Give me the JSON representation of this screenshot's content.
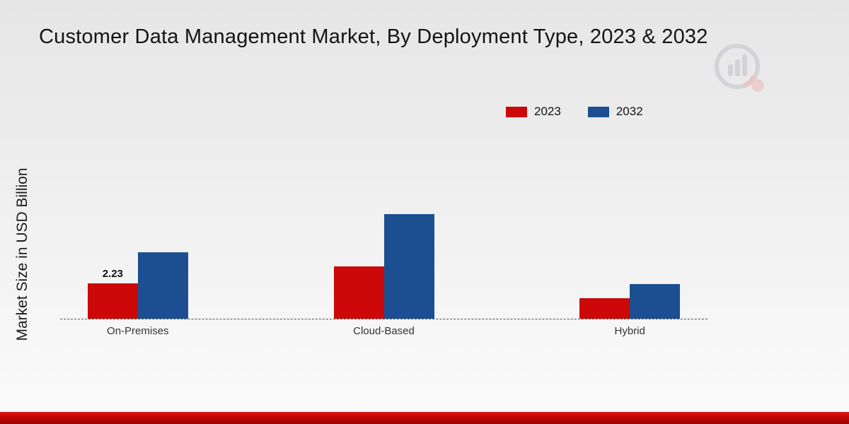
{
  "title": "Customer Data Management Market, By Deployment Type, 2023 & 2032",
  "ylabel": "Market Size in USD Billion",
  "colors": {
    "series_2023": "#cc0808",
    "series_2032": "#1b4f91",
    "footer_band": "#c40707",
    "baseline": "#555555"
  },
  "legend": {
    "items": [
      "2023",
      "2032"
    ],
    "position": "top-right"
  },
  "chart_data": {
    "type": "bar",
    "categories": [
      "On-Premises",
      "Cloud-Based",
      "Hybrid"
    ],
    "series": [
      {
        "name": "2023",
        "color": "#cc0808",
        "values": [
          2.23,
          3.3,
          1.3
        ]
      },
      {
        "name": "2032",
        "color": "#1b4f91",
        "values": [
          4.2,
          6.6,
          2.2
        ]
      }
    ],
    "title": "Customer Data Management Market, By Deployment Type, 2023 & 2032",
    "xlabel": "",
    "ylabel": "Market Size in USD Billion",
    "ylim": [
      0,
      8
    ],
    "grid": false,
    "legend_position": "top-right",
    "annotations": [
      {
        "text": "2.23",
        "category": "On-Premises",
        "series": "2023"
      }
    ]
  }
}
